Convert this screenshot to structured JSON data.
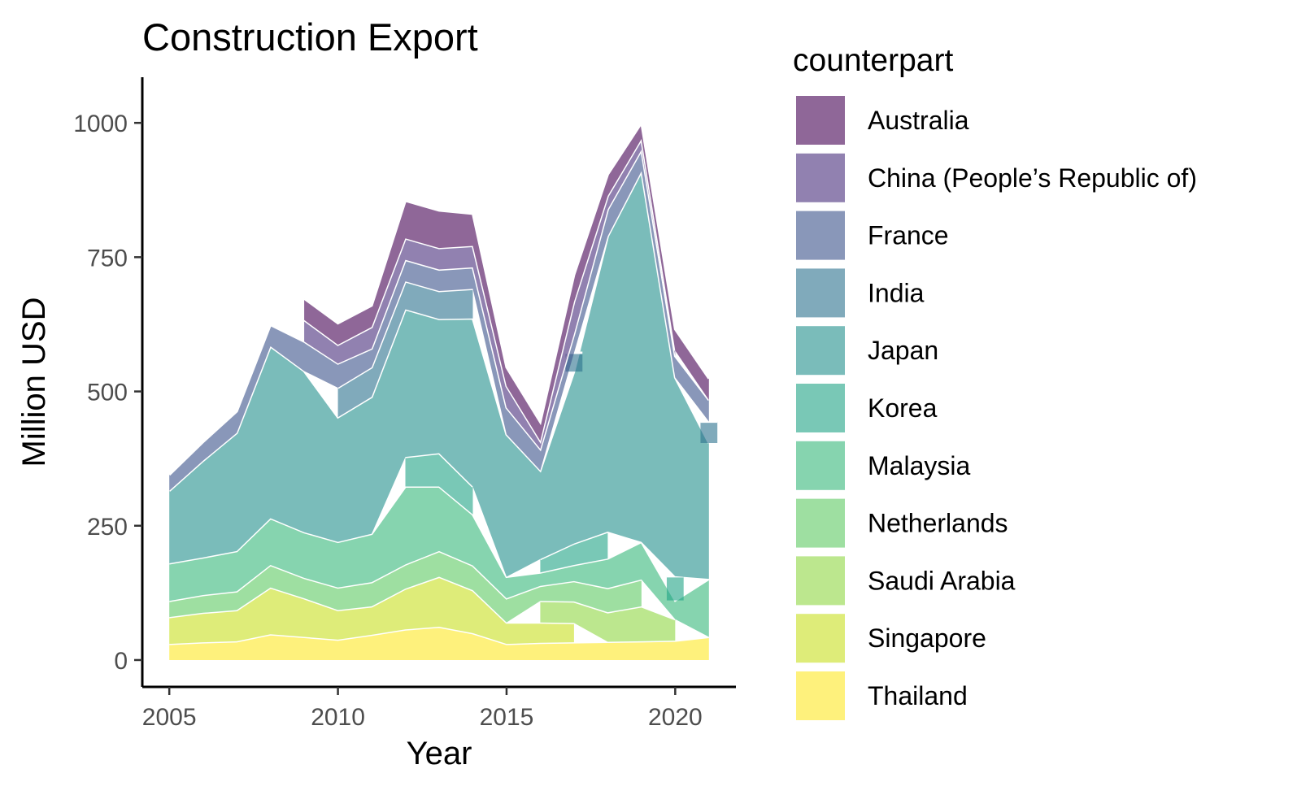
{
  "chart_data": {
    "type": "area",
    "title": "Construction Export",
    "xlabel": "Year",
    "ylabel": "Million USD",
    "legend_title": "counterpart",
    "legend_position": "right",
    "grid": false,
    "x": [
      2005,
      2006,
      2007,
      2008,
      2009,
      2010,
      2011,
      2012,
      2013,
      2014,
      2015,
      2016,
      2017,
      2018,
      2019,
      2020,
      2021
    ],
    "xlim": [
      2004.2,
      2021.8
    ],
    "ylim": [
      -50,
      1085
    ],
    "x_ticks": [
      2005,
      2010,
      2015,
      2020
    ],
    "y_ticks": [
      0,
      250,
      500,
      750,
      1000
    ],
    "series": [
      {
        "name": "Thailand",
        "color": "#FDE725",
        "values": [
          30,
          33,
          35,
          48,
          43,
          38,
          47,
          57,
          62,
          50,
          30,
          32,
          33,
          34,
          35,
          36,
          43
        ]
      },
      {
        "name": "Singapore",
        "color": "#C8E020",
        "values": [
          50,
          55,
          58,
          87,
          72,
          55,
          53,
          76,
          93,
          80,
          40,
          38,
          36,
          null,
          null,
          null,
          null
        ]
      },
      {
        "name": "Saudi Arabia",
        "color": "#90D743",
        "values": [
          null,
          null,
          null,
          null,
          null,
          null,
          null,
          null,
          null,
          null,
          null,
          40,
          40,
          55,
          65,
          40,
          null
        ]
      },
      {
        "name": "Netherlands",
        "color": "#5EC962",
        "values": [
          30,
          33,
          35,
          42,
          38,
          42,
          45,
          45,
          48,
          46,
          45,
          28,
          38,
          45,
          50,
          null,
          null
        ]
      },
      {
        "name": "Malaysia",
        "color": "#35B779",
        "values": [
          70,
          70,
          75,
          87,
          85,
          85,
          90,
          145,
          120,
          95,
          40,
          25,
          30,
          55,
          70,
          35,
          108
        ]
      },
      {
        "name": "Korea",
        "color": "#20A486",
        "values": [
          null,
          null,
          null,
          null,
          null,
          null,
          null,
          55,
          62,
          52,
          null,
          25,
          40,
          50,
          null,
          45,
          null
        ]
      },
      {
        "name": "Japan",
        "color": "#21908C",
        "values": [
          135,
          180,
          220,
          320,
          300,
          232,
          255,
          275,
          250,
          313,
          265,
          165,
          320,
          550,
          690,
          370,
          253
        ]
      },
      {
        "name": "India",
        "color": "#2C728E",
        "values": [
          null,
          null,
          null,
          null,
          null,
          55,
          55,
          52,
          52,
          55,
          null,
          null,
          35,
          null,
          null,
          null,
          40
        ]
      },
      {
        "name": "France",
        "color": "#3B528B",
        "values": [
          30,
          35,
          40,
          40,
          55,
          45,
          35,
          40,
          40,
          40,
          50,
          40,
          35,
          50,
          40,
          40,
          40
        ]
      },
      {
        "name": "China (People’s Republic of)",
        "color": "#472D7B",
        "values": [
          null,
          null,
          null,
          null,
          40,
          35,
          40,
          40,
          40,
          40,
          40,
          15,
          60,
          25,
          20,
          10,
          null
        ]
      },
      {
        "name": "Australia",
        "color": "#440154",
        "values": [
          null,
          null,
          null,
          null,
          40,
          40,
          40,
          70,
          70,
          60,
          35,
          35,
          50,
          40,
          30,
          40,
          40
        ]
      }
    ]
  }
}
